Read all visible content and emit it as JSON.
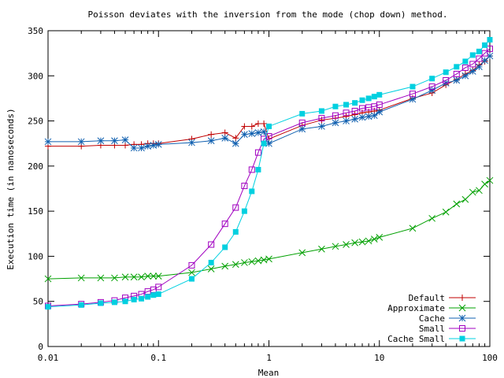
{
  "chart_data": {
    "type": "line",
    "title": "Poisson deviates with the inversion from the mode (chop down) method.",
    "xlabel": "Mean",
    "ylabel": "Execution time (in nanoseconds)",
    "xscale": "log",
    "xlim": [
      0.01,
      100
    ],
    "ylim": [
      0,
      350
    ],
    "x_ticks": [
      0.01,
      0.1,
      1,
      10,
      100
    ],
    "x_tick_labels": [
      "0.01",
      "0.1",
      "1",
      "10",
      "100"
    ],
    "y_ticks": [
      0,
      50,
      100,
      150,
      200,
      250,
      300,
      350
    ],
    "y_tick_labels": [
      "0",
      "50",
      "100",
      "150",
      "200",
      "250",
      "300",
      "350"
    ],
    "grid": false,
    "legend_position": "bottom-right",
    "series": [
      {
        "name": "Default",
        "color": "#c00000",
        "marker": "plus",
        "points": [
          [
            0.01,
            222
          ],
          [
            0.02,
            222
          ],
          [
            0.03,
            223
          ],
          [
            0.04,
            223
          ],
          [
            0.05,
            223
          ],
          [
            0.06,
            224
          ],
          [
            0.07,
            224
          ],
          [
            0.08,
            225
          ],
          [
            0.09,
            225
          ],
          [
            0.1,
            225
          ],
          [
            0.2,
            230
          ],
          [
            0.3,
            235
          ],
          [
            0.4,
            237
          ],
          [
            0.5,
            231
          ],
          [
            0.6,
            244
          ],
          [
            0.7,
            244
          ],
          [
            0.8,
            247
          ],
          [
            0.9,
            247
          ],
          [
            1,
            230
          ],
          [
            2,
            245
          ],
          [
            3,
            251
          ],
          [
            4,
            253
          ],
          [
            5,
            255
          ],
          [
            6,
            257
          ],
          [
            7,
            259
          ],
          [
            8,
            260
          ],
          [
            9,
            261
          ],
          [
            10,
            262
          ],
          [
            20,
            275
          ],
          [
            30,
            281
          ],
          [
            40,
            290
          ],
          [
            50,
            296
          ],
          [
            60,
            302
          ],
          [
            70,
            306
          ],
          [
            80,
            312
          ],
          [
            90,
            316
          ],
          [
            100,
            322
          ]
        ]
      },
      {
        "name": "Approximate",
        "color": "#00a000",
        "marker": "x",
        "points": [
          [
            0.01,
            75
          ],
          [
            0.02,
            76
          ],
          [
            0.03,
            76
          ],
          [
            0.04,
            76
          ],
          [
            0.05,
            77
          ],
          [
            0.06,
            77
          ],
          [
            0.07,
            77
          ],
          [
            0.08,
            78
          ],
          [
            0.09,
            78
          ],
          [
            0.1,
            78
          ],
          [
            0.2,
            82
          ],
          [
            0.3,
            86
          ],
          [
            0.4,
            89
          ],
          [
            0.5,
            91
          ],
          [
            0.6,
            93
          ],
          [
            0.7,
            94
          ],
          [
            0.8,
            95
          ],
          [
            0.9,
            96
          ],
          [
            1,
            97
          ],
          [
            2,
            104
          ],
          [
            3,
            108
          ],
          [
            4,
            111
          ],
          [
            5,
            113
          ],
          [
            6,
            115
          ],
          [
            7,
            116
          ],
          [
            8,
            117
          ],
          [
            9,
            119
          ],
          [
            10,
            121
          ],
          [
            20,
            131
          ],
          [
            30,
            142
          ],
          [
            40,
            149
          ],
          [
            50,
            158
          ],
          [
            60,
            163
          ],
          [
            70,
            171
          ],
          [
            80,
            173
          ],
          [
            90,
            180
          ],
          [
            100,
            184
          ]
        ]
      },
      {
        "name": "Cache",
        "color": "#1060b0",
        "marker": "star",
        "points": [
          [
            0.01,
            227
          ],
          [
            0.02,
            227
          ],
          [
            0.03,
            228
          ],
          [
            0.04,
            228
          ],
          [
            0.05,
            229
          ],
          [
            0.06,
            220
          ],
          [
            0.07,
            220
          ],
          [
            0.08,
            222
          ],
          [
            0.09,
            223
          ],
          [
            0.1,
            224
          ],
          [
            0.2,
            226
          ],
          [
            0.3,
            228
          ],
          [
            0.4,
            231
          ],
          [
            0.5,
            225
          ],
          [
            0.6,
            235
          ],
          [
            0.7,
            236
          ],
          [
            0.8,
            237
          ],
          [
            0.9,
            238
          ],
          [
            1,
            225
          ],
          [
            2,
            241
          ],
          [
            3,
            244
          ],
          [
            4,
            248
          ],
          [
            5,
            250
          ],
          [
            6,
            252
          ],
          [
            7,
            254
          ],
          [
            8,
            255
          ],
          [
            9,
            256
          ],
          [
            10,
            260
          ],
          [
            20,
            274
          ],
          [
            30,
            284
          ],
          [
            40,
            292
          ],
          [
            50,
            295
          ],
          [
            60,
            300
          ],
          [
            70,
            305
          ],
          [
            80,
            310
          ],
          [
            90,
            317
          ],
          [
            100,
            322
          ]
        ]
      },
      {
        "name": "Small",
        "color": "#a000c0",
        "marker": "square-open",
        "points": [
          [
            0.01,
            45
          ],
          [
            0.02,
            47
          ],
          [
            0.03,
            49
          ],
          [
            0.04,
            51
          ],
          [
            0.05,
            54
          ],
          [
            0.06,
            56
          ],
          [
            0.07,
            58
          ],
          [
            0.08,
            61
          ],
          [
            0.09,
            63
          ],
          [
            0.1,
            66
          ],
          [
            0.2,
            90
          ],
          [
            0.3,
            113
          ],
          [
            0.4,
            136
          ],
          [
            0.5,
            154
          ],
          [
            0.6,
            178
          ],
          [
            0.7,
            196
          ],
          [
            0.8,
            215
          ],
          [
            0.9,
            230
          ],
          [
            1,
            233
          ],
          [
            2,
            248
          ],
          [
            3,
            253
          ],
          [
            4,
            256
          ],
          [
            5,
            259
          ],
          [
            6,
            261
          ],
          [
            7,
            264
          ],
          [
            8,
            265
          ],
          [
            9,
            266
          ],
          [
            10,
            268
          ],
          [
            20,
            280
          ],
          [
            30,
            288
          ],
          [
            40,
            295
          ],
          [
            50,
            302
          ],
          [
            60,
            309
          ],
          [
            70,
            313
          ],
          [
            80,
            319
          ],
          [
            90,
            325
          ],
          [
            100,
            330
          ]
        ]
      },
      {
        "name": "Cache Small",
        "color": "#00d0e0",
        "marker": "square-filled",
        "points": [
          [
            0.01,
            44
          ],
          [
            0.02,
            46
          ],
          [
            0.03,
            48
          ],
          [
            0.04,
            49
          ],
          [
            0.05,
            50
          ],
          [
            0.06,
            52
          ],
          [
            0.07,
            53
          ],
          [
            0.08,
            55
          ],
          [
            0.09,
            57
          ],
          [
            0.1,
            58
          ],
          [
            0.2,
            75
          ],
          [
            0.3,
            93
          ],
          [
            0.4,
            110
          ],
          [
            0.5,
            127
          ],
          [
            0.6,
            150
          ],
          [
            0.7,
            172
          ],
          [
            0.8,
            196
          ],
          [
            0.9,
            225
          ],
          [
            1,
            244
          ],
          [
            2,
            258
          ],
          [
            3,
            261
          ],
          [
            4,
            266
          ],
          [
            5,
            268
          ],
          [
            6,
            270
          ],
          [
            7,
            273
          ],
          [
            8,
            275
          ],
          [
            9,
            277
          ],
          [
            10,
            279
          ],
          [
            20,
            288
          ],
          [
            30,
            297
          ],
          [
            40,
            304
          ],
          [
            50,
            310
          ],
          [
            60,
            316
          ],
          [
            70,
            323
          ],
          [
            80,
            327
          ],
          [
            90,
            334
          ],
          [
            100,
            340
          ]
        ]
      }
    ]
  }
}
